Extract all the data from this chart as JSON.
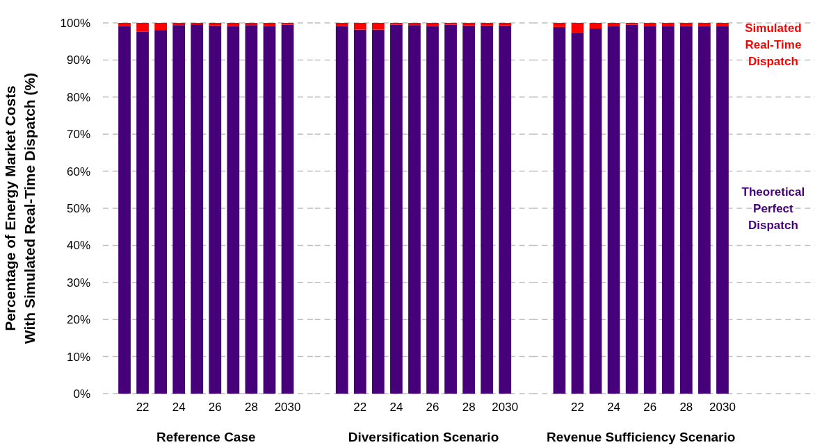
{
  "chart_data": [
    {
      "type": "bar",
      "stacked": true,
      "ylabel": "Percentage of Energy Market Costs\nWith Simulated Real-Time Dispatch (%)",
      "xlabel": "Reference Case",
      "categories": [
        null,
        "22",
        null,
        "24",
        null,
        "26",
        null,
        "28",
        null,
        "2030"
      ],
      "series": [
        {
          "color": "#46007a",
          "values": [
            99.1,
            97.6,
            98.1,
            99.4,
            99.6,
            99.3,
            99.1,
            99.4,
            99.1,
            99.5
          ]
        },
        {
          "color": "#ff0000",
          "values": [
            0.9,
            2.4,
            1.9,
            0.6,
            0.4,
            0.7,
            0.9,
            0.6,
            0.9,
            0.5
          ]
        }
      ],
      "ylim": [
        0,
        100
      ],
      "yticks": [
        {
          "value": 0,
          "label": "0%"
        },
        {
          "value": 10,
          "label": "10%"
        },
        {
          "value": 20,
          "label": "20%"
        },
        {
          "value": 30,
          "label": "30%"
        },
        {
          "value": 40,
          "label": "40%"
        },
        {
          "value": 50,
          "label": "50%"
        },
        {
          "value": 60,
          "label": "60%"
        },
        {
          "value": 70,
          "label": "70%"
        },
        {
          "value": 80,
          "label": "80%"
        },
        {
          "value": 90,
          "label": "90%"
        },
        {
          "value": 100,
          "label": "100%"
        }
      ],
      "grid": "y"
    },
    {
      "type": "bar",
      "stacked": true,
      "xlabel": "Diversification Scenario",
      "tick_labels": "x",
      "categories": [
        null,
        "22",
        null,
        "24",
        null,
        "26",
        null,
        "28",
        null,
        "2030"
      ],
      "series": [
        {
          "color": "#46007a",
          "values": [
            99.1,
            98.2,
            98.2,
            99.5,
            99.4,
            99.1,
            99.5,
            99.3,
            99.3,
            99.3
          ]
        },
        {
          "color": "#ff0000",
          "values": [
            0.9,
            1.8,
            1.8,
            0.5,
            0.6,
            0.9,
            0.5,
            0.7,
            0.7,
            0.7
          ]
        }
      ],
      "ylim": [
        0,
        100
      ],
      "yticks": [
        0,
        10,
        20,
        30,
        40,
        50,
        60,
        70,
        80,
        90,
        100
      ],
      "grid": "y"
    },
    {
      "type": "bar",
      "stacked": true,
      "xlabel": "Revenue Sufficiency Scenario",
      "tick_labels": "x",
      "categories": [
        null,
        "22",
        null,
        "24",
        null,
        "26",
        null,
        "28",
        null,
        "2030"
      ],
      "series": [
        {
          "name": "Theoretical Perfect Dispatch",
          "color": "#46007a",
          "values": [
            98.9,
            97.4,
            98.5,
            99.2,
            99.5,
            99.2,
            99.2,
            99.1,
            99.1,
            99.2
          ]
        },
        {
          "name": "Simulated Real-Time Dispatch",
          "color": "#ff0000",
          "values": [
            1.1,
            2.6,
            1.5,
            0.8,
            0.5,
            0.8,
            0.8,
            0.9,
            0.9,
            0.8
          ]
        }
      ],
      "ylim": [
        0,
        100
      ],
      "yticks": [
        0,
        10,
        20,
        30,
        40,
        50,
        60,
        70,
        80,
        90,
        100
      ],
      "grid": "y",
      "legend": "right"
    }
  ]
}
